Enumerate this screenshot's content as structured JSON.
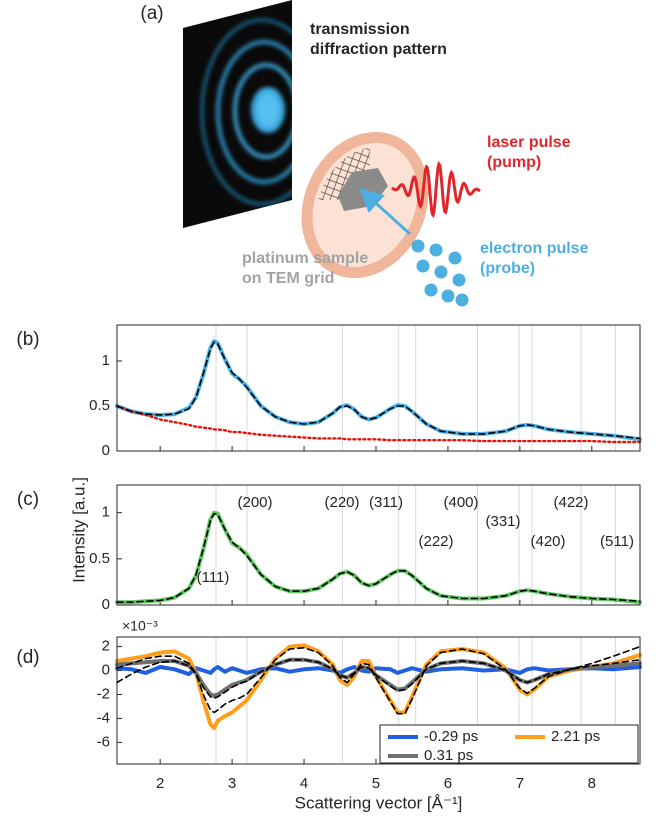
{
  "diagram": {
    "panel_label": "(a)",
    "screen_label": [
      "transmission",
      "diffraction pattern"
    ],
    "laser_label": [
      "laser pulse",
      "(pump)"
    ],
    "electron_label": [
      "electron pulse",
      "(probe)"
    ],
    "sample_label": [
      "platinum sample",
      "on TEM grid"
    ]
  },
  "chart_data": [
    {
      "type": "line",
      "panel_label": "(b)",
      "xlim": [
        1.4,
        8.67
      ],
      "ylim": [
        0,
        1.4
      ],
      "yticks": [
        0,
        0.5,
        1
      ],
      "x": [
        1.4,
        1.6,
        1.8,
        2.0,
        2.2,
        2.4,
        2.5,
        2.6,
        2.7,
        2.75,
        2.8,
        2.9,
        3.0,
        3.1,
        3.2,
        3.4,
        3.6,
        3.8,
        4.0,
        4.2,
        4.4,
        4.5,
        4.6,
        4.7,
        4.8,
        4.9,
        5.0,
        5.2,
        5.3,
        5.4,
        5.5,
        5.7,
        5.9,
        6.2,
        6.5,
        6.8,
        7.0,
        7.1,
        7.2,
        7.4,
        7.7,
        8.0,
        8.3,
        8.67
      ],
      "series": [
        {
          "color": "#4bb3e6",
          "values": [
            0.5,
            0.44,
            0.41,
            0.4,
            0.41,
            0.48,
            0.6,
            0.85,
            1.15,
            1.22,
            1.2,
            1.02,
            0.86,
            0.8,
            0.72,
            0.5,
            0.38,
            0.32,
            0.3,
            0.32,
            0.42,
            0.49,
            0.51,
            0.46,
            0.38,
            0.35,
            0.37,
            0.47,
            0.51,
            0.5,
            0.44,
            0.3,
            0.22,
            0.19,
            0.19,
            0.22,
            0.28,
            0.29,
            0.28,
            0.24,
            0.21,
            0.19,
            0.17,
            0.13
          ]
        },
        {
          "color": "#e3120b",
          "dash": "dotted",
          "values": [
            0.5,
            0.44,
            0.4,
            0.35,
            0.32,
            0.29,
            0.27,
            0.26,
            0.25,
            0.24,
            0.24,
            0.23,
            0.21,
            0.21,
            0.2,
            0.18,
            0.17,
            0.16,
            0.15,
            0.14,
            0.14,
            0.14,
            0.13,
            0.13,
            0.13,
            0.13,
            0.13,
            0.12,
            0.12,
            0.12,
            0.12,
            0.12,
            0.12,
            0.12,
            0.11,
            0.11,
            0.11,
            0.11,
            0.11,
            0.11,
            0.11,
            0.11,
            0.1,
            0.1
          ]
        },
        {
          "color": "#000000",
          "dash": "dashed",
          "values": [
            0.5,
            0.44,
            0.41,
            0.4,
            0.41,
            0.47,
            0.6,
            0.86,
            1.14,
            1.21,
            1.19,
            1.02,
            0.87,
            0.8,
            0.71,
            0.5,
            0.38,
            0.32,
            0.3,
            0.32,
            0.42,
            0.49,
            0.5,
            0.46,
            0.38,
            0.35,
            0.37,
            0.47,
            0.5,
            0.5,
            0.44,
            0.3,
            0.22,
            0.19,
            0.19,
            0.22,
            0.28,
            0.29,
            0.28,
            0.24,
            0.21,
            0.19,
            0.17,
            0.14
          ]
        }
      ]
    },
    {
      "type": "line",
      "panel_label": "(c)",
      "y_label": "Intensity [a.u.]",
      "xlim": [
        1.4,
        8.67
      ],
      "ylim": [
        0,
        1.3
      ],
      "yticks": [
        0,
        0.5,
        1
      ],
      "reflections": [
        {
          "label": "(111)",
          "x": 2.776
        },
        {
          "label": "(200)",
          "x": 3.206
        },
        {
          "label": "(220)",
          "x": 4.533
        },
        {
          "label": "(311)",
          "x": 5.316
        },
        {
          "label": "(222)",
          "x": 5.552
        },
        {
          "label": "(400)",
          "x": 6.411
        },
        {
          "label": "(331)",
          "x": 6.987
        },
        {
          "label": "(420)",
          "x": 7.168
        },
        {
          "label": "(422)",
          "x": 7.852
        },
        {
          "label": "(511)",
          "x": 8.328
        }
      ],
      "x": [
        1.4,
        1.6,
        1.8,
        2.0,
        2.2,
        2.4,
        2.5,
        2.6,
        2.7,
        2.75,
        2.8,
        2.9,
        3.0,
        3.1,
        3.2,
        3.4,
        3.6,
        3.8,
        4.0,
        4.2,
        4.4,
        4.5,
        4.6,
        4.7,
        4.8,
        4.9,
        5.0,
        5.2,
        5.3,
        5.4,
        5.5,
        5.7,
        5.9,
        6.2,
        6.5,
        6.8,
        7.0,
        7.1,
        7.2,
        7.4,
        7.7,
        8.0,
        8.3,
        8.67
      ],
      "series": [
        {
          "color": "#5cc85c",
          "values": [
            0.03,
            0.03,
            0.04,
            0.05,
            0.08,
            0.18,
            0.32,
            0.6,
            0.93,
            1.0,
            0.99,
            0.82,
            0.67,
            0.62,
            0.55,
            0.33,
            0.2,
            0.15,
            0.15,
            0.18,
            0.28,
            0.34,
            0.36,
            0.32,
            0.24,
            0.21,
            0.23,
            0.33,
            0.37,
            0.37,
            0.32,
            0.18,
            0.1,
            0.07,
            0.07,
            0.1,
            0.15,
            0.16,
            0.15,
            0.12,
            0.09,
            0.07,
            0.06,
            0.03
          ]
        },
        {
          "color": "#000000",
          "dash": "dashed",
          "values": [
            0.03,
            0.03,
            0.04,
            0.05,
            0.08,
            0.18,
            0.33,
            0.61,
            0.92,
            0.99,
            0.98,
            0.82,
            0.68,
            0.62,
            0.54,
            0.33,
            0.2,
            0.15,
            0.15,
            0.18,
            0.28,
            0.34,
            0.36,
            0.32,
            0.24,
            0.21,
            0.23,
            0.33,
            0.37,
            0.37,
            0.32,
            0.18,
            0.1,
            0.07,
            0.07,
            0.1,
            0.15,
            0.16,
            0.15,
            0.12,
            0.09,
            0.07,
            0.06,
            0.04
          ]
        }
      ]
    },
    {
      "type": "line",
      "panel_label": "(d)",
      "axis_multiplier": "×10⁻³",
      "x_label": "Scattering vector [Å⁻¹]",
      "legend": "lower right",
      "xlim": [
        1.4,
        8.67
      ],
      "xticks": [
        2,
        3,
        4,
        5,
        6,
        7,
        8
      ],
      "ylim": [
        -7.8,
        2.8
      ],
      "yticks": [
        2,
        0,
        -2,
        -4,
        -6
      ],
      "x": [
        1.4,
        1.6,
        1.8,
        2.0,
        2.2,
        2.4,
        2.5,
        2.6,
        2.7,
        2.75,
        2.8,
        2.9,
        3.0,
        3.1,
        3.2,
        3.4,
        3.6,
        3.8,
        4.0,
        4.2,
        4.4,
        4.5,
        4.6,
        4.7,
        4.8,
        4.9,
        5.0,
        5.2,
        5.3,
        5.4,
        5.5,
        5.7,
        5.9,
        6.2,
        6.5,
        6.8,
        7.0,
        7.1,
        7.2,
        7.4,
        7.7,
        8.0,
        8.3,
        8.67
      ],
      "series": [
        {
          "name": "-0.29 ps",
          "color": "#1f5fe0",
          "values": [
            0.2,
            0.1,
            -0.2,
            0.3,
            0.1,
            -0.3,
            0.2,
            0,
            -0.2,
            0.1,
            0.3,
            -0.1,
            0.2,
            0,
            -0.2,
            0.1,
            0.2,
            -0.1,
            0.1,
            0.2,
            0,
            -0.2,
            0.1,
            0.3,
            0,
            -0.1,
            0.2,
            0.1,
            -0.2,
            0,
            0.2,
            -0.1,
            0.1,
            0.2,
            0,
            0.1,
            -0.2,
            0.1,
            0.2,
            0,
            0.1,
            0.2,
            0.1,
            0.3
          ]
        },
        {
          "name": "2.21 ps",
          "color": "#ff9e1b",
          "values": [
            0.8,
            1.0,
            1.2,
            1.5,
            1.6,
            1.0,
            -0.2,
            -2.5,
            -4.5,
            -4.8,
            -4.2,
            -3.8,
            -3.5,
            -3.0,
            -2.5,
            -0.8,
            1.0,
            2.0,
            2.1,
            1.6,
            0.5,
            -0.8,
            -1.2,
            -0.5,
            0.8,
            0.8,
            -0.5,
            -2.5,
            -3.5,
            -3.5,
            -2.2,
            0.5,
            1.6,
            1.8,
            1.5,
            0.2,
            -1.6,
            -2.0,
            -1.6,
            -0.5,
            0,
            0.3,
            0.6,
            1.3
          ]
        },
        {
          "name": "0.31 ps",
          "color": "#707070",
          "values": [
            0.5,
            0.6,
            0.7,
            0.8,
            0.8,
            0.4,
            -0.2,
            -1.2,
            -2.0,
            -2.1,
            -2.0,
            -1.6,
            -1.2,
            -1.0,
            -0.8,
            -0.1,
            0.5,
            0.9,
            0.9,
            0.7,
            0.1,
            -0.4,
            -0.6,
            -0.2,
            0.3,
            0.2,
            -0.4,
            -1.2,
            -1.6,
            -1.5,
            -1.0,
            0.1,
            0.6,
            0.8,
            0.6,
            0,
            -0.8,
            -1.0,
            -0.8,
            -0.3,
            0.1,
            0.3,
            0.4,
            0.6
          ]
        },
        {
          "color": "#000000",
          "dash": "dashed",
          "values": [
            -1.0,
            -0.3,
            0.3,
            0.7,
            0.8,
            0.4,
            -0.3,
            -1.4,
            -2.2,
            -2.3,
            -2.2,
            -1.8,
            -1.4,
            -1.1,
            -0.9,
            -0.1,
            0.5,
            0.9,
            0.9,
            0.7,
            0.1,
            -0.4,
            -0.6,
            -0.2,
            0.3,
            0.2,
            -0.4,
            -1.3,
            -1.7,
            -1.6,
            -1.1,
            0.1,
            0.6,
            0.8,
            0.6,
            0,
            -0.8,
            -1.0,
            -0.8,
            -0.3,
            0.1,
            0.4,
            0.6,
            0.9
          ]
        },
        {
          "color": "#000000",
          "dash": "dashed",
          "values": [
            0.2,
            0.6,
            1.0,
            1.2,
            1.2,
            0.6,
            -0.3,
            -2.0,
            -3.3,
            -3.5,
            -3.3,
            -2.8,
            -2.5,
            -2.3,
            -2.0,
            -0.6,
            0.9,
            1.8,
            1.9,
            1.5,
            0.4,
            -0.6,
            -1.0,
            -0.3,
            0.6,
            0.5,
            -0.6,
            -2.6,
            -3.6,
            -3.6,
            -2.4,
            0.4,
            1.5,
            1.8,
            1.4,
            0.1,
            -1.5,
            -1.9,
            -1.5,
            -0.5,
            0.1,
            0.6,
            1.2,
            2.0
          ]
        }
      ]
    }
  ]
}
